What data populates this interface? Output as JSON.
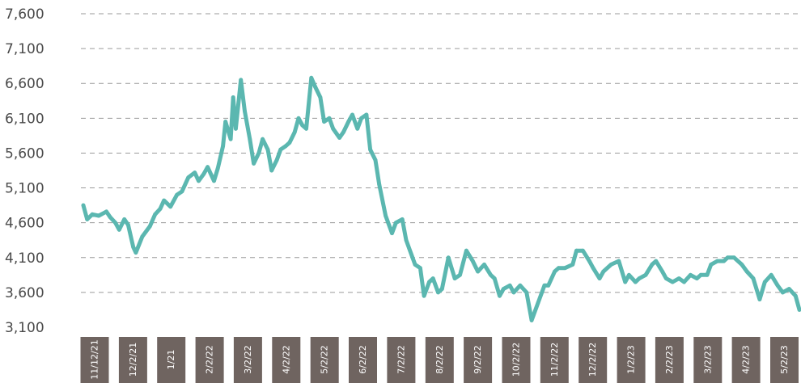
{
  "chart_data": {
    "type": "line",
    "title": "",
    "xlabel": "",
    "ylabel": "",
    "ylim": [
      3100,
      7600
    ],
    "yticks": [
      3100,
      3600,
      4100,
      4600,
      5100,
      5600,
      6100,
      6600,
      7100,
      7600
    ],
    "ytick_labels": [
      "3,100",
      "3,600",
      "4,100",
      "4,600",
      "5,100",
      "5,600",
      "6,100",
      "6,600",
      "7,100",
      "7,600"
    ],
    "xtick_labels": [
      "11/12/21",
      "12/2/21",
      "1/21",
      "2/2/22",
      "3/2/22",
      "4/2/22",
      "5/2/22",
      "6/2/22",
      "7/2/22",
      "8/2/22",
      "9/2/22",
      "10/2/22",
      "11/2/22",
      "12/2/22",
      "1/2/23",
      "2/2/23",
      "3/2/23",
      "4/2/23",
      "5/2/23"
    ],
    "grid": true,
    "legend": "none",
    "line_color": "#5bb7b0",
    "tick_box_color": "#6f6460",
    "series": [
      {
        "x": [
          "11/12/21",
          "11/15/21",
          "11/19/21",
          "11/24/21",
          "11/30/21",
          "12/3/21",
          "12/7/21",
          "12/10/21",
          "12/14/21",
          "12/17/21",
          "12/21/21",
          "12/23/21",
          "12/28/21",
          "1/3/22",
          "1/7/22",
          "1/11/22",
          "1/14/22",
          "1/19/22",
          "1/24/22",
          "1/28/22",
          "2/2/22",
          "2/7/22",
          "2/10/22",
          "2/14/22",
          "2/17/22",
          "2/22/22",
          "2/25/22",
          "3/1/22",
          "3/3/22",
          "3/7/22",
          "3/9/22",
          "3/11/22",
          "3/15/22",
          "3/18/22",
          "3/22/22",
          "3/25/22",
          "3/29/22",
          "4/1/22",
          "4/5/22",
          "4/8/22",
          "4/12/22",
          "4/15/22",
          "4/19/22",
          "4/22/22",
          "4/26/22",
          "4/29/22",
          "5/2/22",
          "5/5/22",
          "5/9/22",
          "5/12/22",
          "5/16/22",
          "5/19/22",
          "5/23/22",
          "5/26/22",
          "5/31/22",
          "6/3/22",
          "6/7/22",
          "6/10/22",
          "6/14/22",
          "6/17/22",
          "6/21/22",
          "6/24/22",
          "6/28/22",
          "7/1/22",
          "7/6/22",
          "7/11/22",
          "7/14/22",
          "7/19/22",
          "7/22/22",
          "7/26/22",
          "7/29/22",
          "8/2/22",
          "8/5/22",
          "8/9/22",
          "8/12/22",
          "8/16/22",
          "8/19/22",
          "8/24/22",
          "8/29/22",
          "9/2/22",
          "9/7/22",
          "9/12/22",
          "9/16/22",
          "9/21/22",
          "9/26/22",
          "9/29/22",
          "10/3/22",
          "10/6/22",
          "10/11/22",
          "10/14/22",
          "10/19/22",
          "10/24/22",
          "10/28/22",
          "11/2/22",
          "11/7/22",
          "11/10/22",
          "11/15/22",
          "11/18/22",
          "11/23/22",
          "11/29/22",
          "12/2/22",
          "12/7/22",
          "12/12/22",
          "12/15/22",
          "12/20/22",
          "12/23/22",
          "12/29/22",
          "1/4/23",
          "1/9/23",
          "1/12/23",
          "1/17/23",
          "1/20/23",
          "1/25/23",
          "1/30/23",
          "2/2/23",
          "2/7/23",
          "2/10/23",
          "2/15/23",
          "2/20/23",
          "2/24/23",
          "3/1/23",
          "3/6/23",
          "3/9/23",
          "3/14/23",
          "3/17/23",
          "3/22/23",
          "3/27/23",
          "3/30/23",
          "4/4/23",
          "4/10/23",
          "4/14/23",
          "4/19/23",
          "4/24/23",
          "4/28/23",
          "5/3/23",
          "5/8/23",
          "5/12/23",
          "5/17/23",
          "5/22/23",
          "5/25/23"
        ],
        "values": [
          4850,
          4650,
          4720,
          4700,
          4760,
          4680,
          4600,
          4500,
          4650,
          4570,
          4250,
          4170,
          4400,
          4550,
          4720,
          4800,
          4920,
          4830,
          5000,
          5050,
          5250,
          5320,
          5200,
          5300,
          5400,
          5200,
          5380,
          5700,
          6050,
          5800,
          6400,
          5950,
          6650,
          6200,
          5800,
          5450,
          5600,
          5800,
          5650,
          5350,
          5500,
          5650,
          5700,
          5750,
          5900,
          6100,
          6000,
          5950,
          6680,
          6550,
          6400,
          6050,
          6100,
          5950,
          5820,
          5900,
          6050,
          6150,
          5950,
          6100,
          6150,
          5650,
          5500,
          5150,
          4700,
          4450,
          4600,
          4650,
          4350,
          4150,
          4000,
          3950,
          3550,
          3750,
          3800,
          3600,
          3650,
          4100,
          3800,
          3850,
          4200,
          4050,
          3900,
          4000,
          3850,
          3800,
          3550,
          3650,
          3700,
          3600,
          3700,
          3600,
          3200,
          3450,
          3700,
          3700,
          3900,
          3950,
          3950,
          4000,
          4200,
          4200,
          4050,
          3950,
          3800,
          3900,
          4000,
          4050,
          3750,
          3850,
          3750,
          3800,
          3850,
          4000,
          4050,
          3900,
          3800,
          3750,
          3800,
          3750,
          3850,
          3800,
          3850,
          3850,
          4000,
          4050,
          4050,
          4100,
          4100,
          4000,
          3900,
          3800,
          3500,
          3750,
          3850,
          3700,
          3600,
          3650,
          3550,
          3350
        ]
      }
    ]
  }
}
